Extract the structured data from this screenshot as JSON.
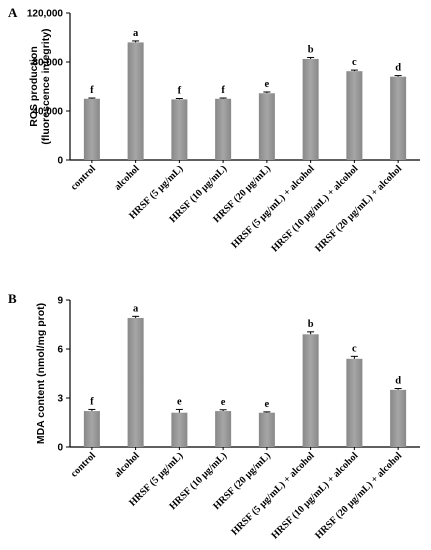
{
  "colors": {
    "bar": "#888888",
    "bar_highlight": "#a6a6a6",
    "axis": "#000000",
    "error": "#000000"
  },
  "chart_data": [
    {
      "type": "bar",
      "panel": "A",
      "title": "",
      "ylabel": [
        "ROS production",
        "(fluorescence integrity)"
      ],
      "xlabel": "",
      "ylim": [
        0,
        120000
      ],
      "yticks": [
        0,
        40000,
        80000,
        120000
      ],
      "ytick_labels": [
        "0",
        "40,000",
        "80,000",
        "120,000"
      ],
      "grid": false,
      "categories": [
        "control",
        "alcohol",
        "HRSF (5 μg/mL)",
        "HRSF (10 μg/mL)",
        "HRSF (20 μg/mL)",
        "HRSF (5 μg/mL) + alcohol",
        "HRSF (10 μg/mL) + alcohol",
        "HRSF (20 μg/mL) + alcohol"
      ],
      "values": [
        50000,
        96000,
        49500,
        50000,
        54500,
        82500,
        72500,
        68000
      ],
      "errors": [
        600,
        1200,
        700,
        600,
        1000,
        1200,
        900,
        900
      ],
      "annotations": [
        "f",
        "a",
        "f",
        "f",
        "e",
        "b",
        "c",
        "d"
      ]
    },
    {
      "type": "bar",
      "panel": "B",
      "title": "",
      "ylabel": [
        "MDA content (nmol/mg prot)"
      ],
      "xlabel": "",
      "ylim": [
        0,
        9
      ],
      "yticks": [
        0,
        3,
        6,
        9
      ],
      "ytick_labels": [
        "0",
        "3",
        "6",
        "9"
      ],
      "grid": false,
      "categories": [
        "control",
        "alcohol",
        "HRSF (5 μg/mL)",
        "HRSF (10 μg/mL)",
        "HRSF (20 μg/mL)",
        "HRSF (5 μg/mL) + alcohol",
        "HRSF (10 μg/mL) + alcohol",
        "HRSF (20 μg/mL) + alcohol"
      ],
      "values": [
        2.2,
        7.9,
        2.1,
        2.2,
        2.1,
        6.9,
        5.4,
        3.5
      ],
      "errors": [
        0.1,
        0.1,
        0.2,
        0.08,
        0.05,
        0.15,
        0.15,
        0.08
      ],
      "annotations": [
        "f",
        "a",
        "e",
        "e",
        "e",
        "b",
        "c",
        "d"
      ]
    }
  ]
}
